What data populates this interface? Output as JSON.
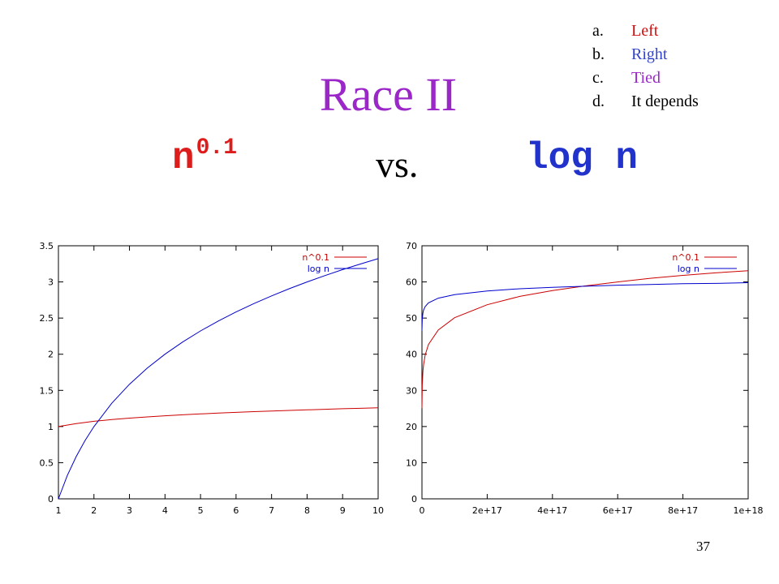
{
  "slide": {
    "title": "Race II",
    "page_number": "37",
    "comparison": {
      "left_base": "n",
      "left_exponent": "0.1",
      "middle": "vs.",
      "right": "log n"
    },
    "answers": [
      {
        "letter": "a.",
        "text": "Left",
        "color": "#cc1111"
      },
      {
        "letter": "b.",
        "text": "Right",
        "color": "#3344cc"
      },
      {
        "letter": "c.",
        "text": "Tied",
        "color": "#9b27c9"
      },
      {
        "letter": "d.",
        "text": "It depends",
        "color": "#000000"
      }
    ]
  },
  "chart_data": [
    {
      "type": "line",
      "x_range": [
        1,
        10
      ],
      "ylim": [
        0,
        3.5
      ],
      "x_ticks": [
        {
          "v": 1,
          "label": "1"
        },
        {
          "v": 2,
          "label": "2"
        },
        {
          "v": 3,
          "label": "3"
        },
        {
          "v": 4,
          "label": "4"
        },
        {
          "v": 5,
          "label": "5"
        },
        {
          "v": 6,
          "label": "6"
        },
        {
          "v": 7,
          "label": "7"
        },
        {
          "v": 8,
          "label": "8"
        },
        {
          "v": 9,
          "label": "9"
        },
        {
          "v": 10,
          "label": "10"
        }
      ],
      "y_ticks": [
        {
          "v": 0,
          "label": "0"
        },
        {
          "v": 0.5,
          "label": "0.5"
        },
        {
          "v": 1,
          "label": "1"
        },
        {
          "v": 1.5,
          "label": "1.5"
        },
        {
          "v": 2,
          "label": "2"
        },
        {
          "v": 2.5,
          "label": "2.5"
        },
        {
          "v": 3,
          "label": "3"
        },
        {
          "v": 3.5,
          "label": "3.5"
        }
      ],
      "legend_position": "top-right",
      "grid": false,
      "series": [
        {
          "name": "n^0.1",
          "color": "#cc0000",
          "x": [
            1,
            1.5,
            2,
            2.5,
            3,
            3.5,
            4,
            4.5,
            5,
            5.5,
            6,
            6.5,
            7,
            7.5,
            8,
            8.5,
            9,
            9.5,
            10
          ],
          "y": [
            1.0,
            1.041,
            1.072,
            1.096,
            1.116,
            1.133,
            1.149,
            1.162,
            1.175,
            1.186,
            1.196,
            1.206,
            1.215,
            1.223,
            1.231,
            1.239,
            1.246,
            1.252,
            1.259
          ]
        },
        {
          "name": "log n",
          "color": "#0000cc",
          "x": [
            1,
            1.25,
            1.5,
            1.75,
            2,
            2.5,
            3,
            3.5,
            4,
            4.5,
            5,
            5.5,
            6,
            6.5,
            7,
            7.5,
            8,
            8.5,
            9,
            9.5,
            10
          ],
          "y": [
            0.0,
            0.322,
            0.585,
            0.807,
            1.0,
            1.322,
            1.585,
            1.807,
            2.0,
            2.17,
            2.322,
            2.459,
            2.585,
            2.7,
            2.807,
            2.907,
            3.0,
            3.087,
            3.17,
            3.248,
            3.322
          ]
        }
      ]
    },
    {
      "type": "line",
      "x_range": [
        0,
        1e+18
      ],
      "ylim": [
        0,
        70
      ],
      "x_ticks": [
        {
          "v": 0,
          "label": "0"
        },
        {
          "v": 2e+17,
          "label": "2e+17"
        },
        {
          "v": 4e+17,
          "label": "4e+17"
        },
        {
          "v": 6e+17,
          "label": "6e+17"
        },
        {
          "v": 8e+17,
          "label": "8e+17"
        },
        {
          "v": 1e+18,
          "label": "1e+18"
        }
      ],
      "y_ticks": [
        {
          "v": 0,
          "label": "0"
        },
        {
          "v": 10,
          "label": "10"
        },
        {
          "v": 20,
          "label": "20"
        },
        {
          "v": 30,
          "label": "30"
        },
        {
          "v": 40,
          "label": "40"
        },
        {
          "v": 50,
          "label": "50"
        },
        {
          "v": 60,
          "label": "60"
        },
        {
          "v": 70,
          "label": "70"
        }
      ],
      "legend_position": "top-right",
      "grid": false,
      "series": [
        {
          "name": "n^0.1",
          "color": "#cc0000",
          "x": [
            100000000000000.0,
            1000000000000000.0,
            3000000000000000.0,
            5000000000000000.0,
            1e+16,
            2e+16,
            5e+16,
            1e+17,
            2e+17,
            3e+17,
            4e+17,
            5e+17,
            6e+17,
            7e+17,
            8e+17,
            9e+17,
            1e+18
          ],
          "y": [
            25.1,
            31.6,
            35.3,
            37.1,
            39.8,
            42.7,
            46.7,
            50.1,
            53.7,
            56.0,
            57.6,
            58.9,
            60.0,
            61.0,
            61.8,
            62.5,
            63.1
          ]
        },
        {
          "name": "log n",
          "color": "#0000cc",
          "x": [
            100000000000000.0,
            1000000000000000.0,
            3000000000000000.0,
            5000000000000000.0,
            1e+16,
            2e+16,
            5e+16,
            1e+17,
            2e+17,
            3e+17,
            4e+17,
            5e+17,
            6e+17,
            7e+17,
            8e+17,
            9e+17,
            1e+18
          ],
          "y": [
            46.5,
            49.8,
            51.4,
            52.2,
            53.2,
            54.2,
            55.5,
            56.5,
            57.5,
            58.1,
            58.5,
            58.8,
            59.1,
            59.3,
            59.5,
            59.6,
            59.8
          ]
        }
      ]
    }
  ]
}
